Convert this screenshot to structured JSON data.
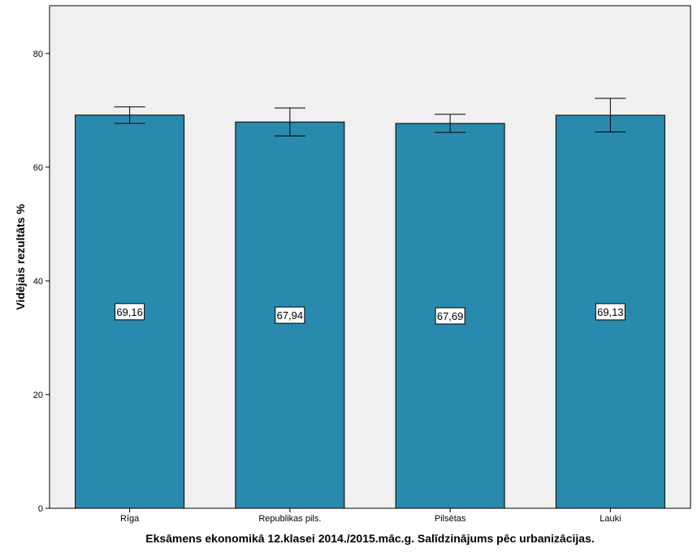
{
  "chart_data": {
    "type": "bar",
    "categories": [
      "Rīga",
      "Republikas pils.",
      "Pilsētas",
      "Lauki"
    ],
    "values": [
      69.16,
      67.94,
      67.69,
      69.13
    ],
    "value_labels": [
      "69,16",
      "67,94",
      "67,69",
      "69,13"
    ],
    "error_bars": [
      {
        "low": 67.7,
        "high": 70.6
      },
      {
        "low": 65.5,
        "high": 70.4
      },
      {
        "low": 66.1,
        "high": 69.3
      },
      {
        "low": 66.2,
        "high": 72.1
      }
    ],
    "xlabel": "Eksāmens ekonomikā 12.klasei 2014./2015.māc.g. Salīdzinājums pēc urbanizācijas.",
    "ylabel": "Vidējais rezultāts %",
    "ylim": [
      0,
      88.4
    ],
    "yticks": [
      0,
      20,
      40,
      60,
      80
    ],
    "grid": false,
    "colors": {
      "bar": "#2a8aad",
      "plot_background": "#f0f0f0",
      "axis": "#000000"
    }
  }
}
